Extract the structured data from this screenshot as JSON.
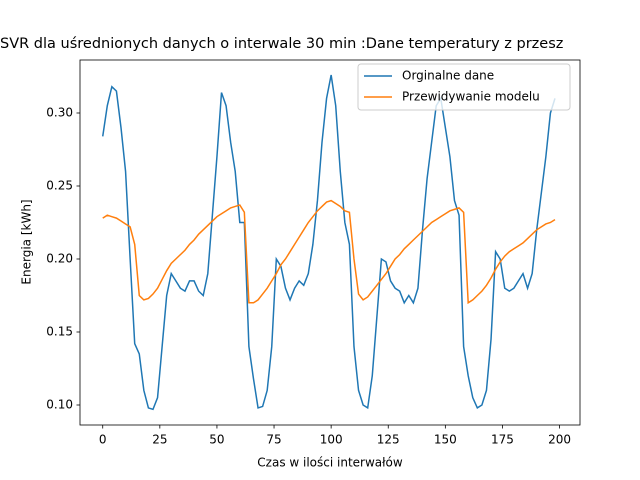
{
  "chart_data": {
    "type": "line",
    "title": "SVR dla uśrednionych danych o interwale 30 min :Dane temperatury z przesz",
    "x_label": "Czas w ilości interwałów",
    "y_label": "Energia [kWh]",
    "x": [
      0,
      2,
      4,
      6,
      8,
      10,
      12,
      14,
      16,
      18,
      20,
      22,
      24,
      26,
      28,
      30,
      32,
      34,
      36,
      38,
      40,
      42,
      44,
      46,
      48,
      50,
      52,
      54,
      56,
      58,
      60,
      62,
      64,
      66,
      68,
      70,
      72,
      74,
      76,
      78,
      80,
      82,
      84,
      86,
      88,
      90,
      92,
      94,
      96,
      98,
      100,
      102,
      104,
      106,
      108,
      110,
      112,
      114,
      116,
      118,
      120,
      122,
      124,
      126,
      128,
      130,
      132,
      134,
      136,
      138,
      140,
      142,
      144,
      146,
      148,
      150,
      152,
      154,
      156,
      158,
      160,
      162,
      164,
      166,
      168,
      170,
      172,
      174,
      176,
      178,
      180,
      182,
      184,
      186,
      188,
      190,
      192,
      194,
      196,
      198
    ],
    "series": [
      {
        "name": "Orginalne dane",
        "color": "#1f77b4",
        "values": [
          0.284,
          0.305,
          0.318,
          0.315,
          0.29,
          0.26,
          0.2,
          0.142,
          0.135,
          0.11,
          0.098,
          0.097,
          0.105,
          0.14,
          0.175,
          0.19,
          0.185,
          0.18,
          0.178,
          0.185,
          0.185,
          0.178,
          0.175,
          0.19,
          0.23,
          0.27,
          0.314,
          0.305,
          0.28,
          0.26,
          0.225,
          0.225,
          0.14,
          0.118,
          0.098,
          0.099,
          0.11,
          0.14,
          0.2,
          0.195,
          0.18,
          0.172,
          0.18,
          0.185,
          0.182,
          0.19,
          0.21,
          0.24,
          0.28,
          0.31,
          0.326,
          0.305,
          0.26,
          0.225,
          0.21,
          0.14,
          0.11,
          0.1,
          0.098,
          0.12,
          0.16,
          0.2,
          0.198,
          0.185,
          0.18,
          0.178,
          0.17,
          0.175,
          0.17,
          0.18,
          0.22,
          0.255,
          0.28,
          0.305,
          0.31,
          0.29,
          0.27,
          0.24,
          0.23,
          0.14,
          0.12,
          0.105,
          0.098,
          0.1,
          0.11,
          0.145,
          0.205,
          0.2,
          0.18,
          0.178,
          0.18,
          0.185,
          0.19,
          0.18,
          0.19,
          0.22,
          0.245,
          0.27,
          0.3,
          0.31
        ]
      },
      {
        "name": "Przewidywanie modelu",
        "color": "#ff7f0e",
        "values": [
          0.228,
          0.23,
          0.229,
          0.228,
          0.226,
          0.224,
          0.222,
          0.21,
          0.175,
          0.172,
          0.173,
          0.176,
          0.18,
          0.186,
          0.192,
          0.197,
          0.2,
          0.203,
          0.206,
          0.21,
          0.213,
          0.217,
          0.22,
          0.223,
          0.226,
          0.229,
          0.231,
          0.233,
          0.235,
          0.236,
          0.237,
          0.232,
          0.17,
          0.17,
          0.172,
          0.176,
          0.18,
          0.185,
          0.19,
          0.196,
          0.2,
          0.205,
          0.21,
          0.215,
          0.22,
          0.225,
          0.229,
          0.233,
          0.236,
          0.239,
          0.24,
          0.238,
          0.236,
          0.233,
          0.232,
          0.2,
          0.176,
          0.172,
          0.174,
          0.178,
          0.182,
          0.186,
          0.19,
          0.195,
          0.2,
          0.203,
          0.207,
          0.21,
          0.213,
          0.216,
          0.219,
          0.222,
          0.225,
          0.227,
          0.229,
          0.231,
          0.233,
          0.234,
          0.235,
          0.232,
          0.17,
          0.172,
          0.175,
          0.178,
          0.182,
          0.187,
          0.193,
          0.198,
          0.202,
          0.205,
          0.207,
          0.209,
          0.211,
          0.214,
          0.217,
          0.22,
          0.222,
          0.224,
          0.225,
          0.227
        ]
      }
    ],
    "xlim": [
      -9.95,
      208.95
    ],
    "ylim": [
      0.0863,
      0.3363
    ],
    "xticks": [
      0,
      25,
      50,
      75,
      100,
      125,
      150,
      175,
      200
    ],
    "yticks": [
      {
        "value": 0.1,
        "label": "0.10"
      },
      0.15,
      {
        "value": 0.2,
        "label": "0.20"
      },
      0.25,
      {
        "value": 0.3,
        "label": "0.30"
      }
    ],
    "legend": "upper right"
  }
}
